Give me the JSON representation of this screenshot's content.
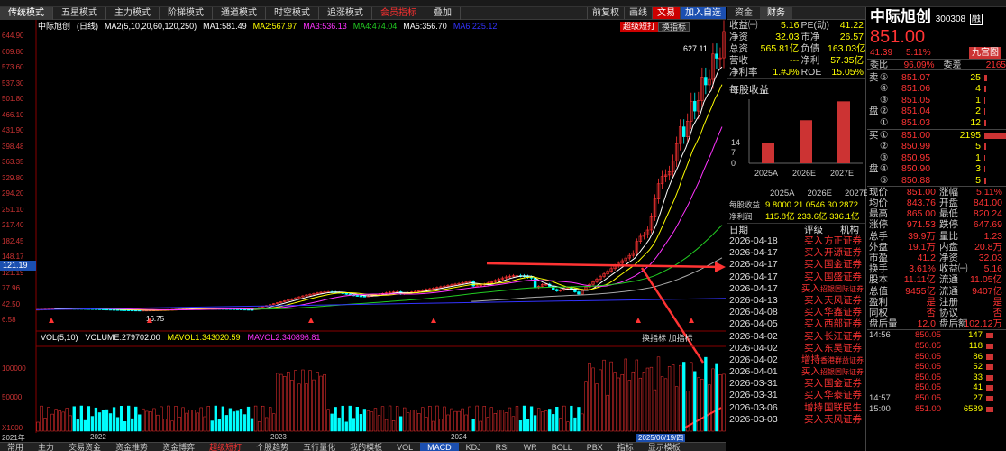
{
  "modes": [
    "传统模式",
    "五星模式",
    "主力模式",
    "阶梯模式",
    "通道模式",
    "时空模式",
    "追涨模式",
    "会员指标",
    "叠加"
  ],
  "mode_active": 0,
  "toolbar": {
    "prev_restore": "前复权",
    "zoom": "画线",
    "cmd": "文易",
    "add_watch": "加入自选"
  },
  "chart_header": {
    "name": "中际旭创",
    "period": "(日线)",
    "ma_setting": "MA2(5,10,20,60,120,250)",
    "ma1": "MA1:581.49",
    "ma2": "MA2:567.97",
    "ma3": "MA3:536.13",
    "ma4": "MA4:474.04",
    "ma5": "MA5:356.70",
    "ma6": "MA6:225.12"
  },
  "chart_buttons": {
    "super": "超级短打",
    "switch": "换指标"
  },
  "price_ticks": [
    "644.90",
    "609.80",
    "573.60",
    "537.30",
    "501.80",
    "466.10",
    "431.90",
    "398.48",
    "363.35",
    "329.80",
    "294.20",
    "251.10",
    "217.40",
    "182.45",
    "148.17",
    "121.19",
    "77.96",
    "42.50",
    "6.58"
  ],
  "current_price_label": "121.19",
  "peak_label": "627.11",
  "low_label": "16.75",
  "volume_header": {
    "label": "VOL(5,10)",
    "volume": "VOLUME:279702.00",
    "mavol1": "MAVOL1:343020.59",
    "mavol2": "MAVOL2:340896.81"
  },
  "volume_buttons": "换指标 加指标",
  "volume_ticks": [
    "100000",
    "50000",
    "X1000"
  ],
  "x_labels": [
    "2021年",
    "2022",
    "2023",
    "2024",
    "2025/06/19/四"
  ],
  "bottom_tabs": [
    "常用",
    "主力",
    "交易资金",
    "资金推势",
    "资金博弈",
    "超级短打",
    "个股趋势",
    "五行量化",
    "我的模板",
    "VOL",
    "MACD",
    "KDJ",
    "RSI",
    "WR",
    "BOLL",
    "PBX",
    "指标",
    "显示模板"
  ],
  "bottom_active": 10,
  "mid_tabs": [
    "资金",
    "财务"
  ],
  "mid_active": 1,
  "fundamentals": [
    {
      "k": "收益㈠",
      "v": "5.16",
      "k2": "PE(动)",
      "v2": "41.22"
    },
    {
      "k": "净资",
      "v": "32.03",
      "k2": "市净",
      "v2": "26.57"
    },
    {
      "k": "总资",
      "v": "565.81亿",
      "k2": "负债",
      "v2": "163.03亿"
    },
    {
      "k": "营收",
      "v": "---",
      "k2": "净利",
      "v2": "57.35亿"
    },
    {
      "k": "净利率",
      "v": "1.#J%",
      "k2": "ROE",
      "v2": "15.05%"
    }
  ],
  "eps_title": "每股收益",
  "chart_data": {
    "type": "bar",
    "title": "每股收益",
    "categories": [
      "2025A",
      "2026E",
      "2027E"
    ],
    "values": [
      9.8,
      21.0546,
      30.2872
    ],
    "ylim": [
      0,
      30
    ],
    "yticks": [
      "14",
      "7",
      "0"
    ],
    "net_profit": [
      "115.8亿",
      "233.6亿",
      "336.1亿"
    ]
  },
  "eps_rows": [
    {
      "k": "每股收益",
      "v": "9.8000 21.0546 30.2872"
    },
    {
      "k": "净利润",
      "v": "115.8亿 233.6亿 336.1亿"
    }
  ],
  "rating_header": {
    "date": "日期",
    "rating": "评级",
    "org": "机构"
  },
  "ratings": [
    {
      "d": "2026-04-18",
      "a": "买入",
      "o": "方正证券"
    },
    {
      "d": "2026-04-17",
      "a": "买入",
      "o": "开源证券"
    },
    {
      "d": "2026-04-17",
      "a": "买入",
      "o": "国金证券"
    },
    {
      "d": "2026-04-17",
      "a": "买入",
      "o": "国盛证券"
    },
    {
      "d": "2026-04-17",
      "a": "买入",
      "o": "招银国际证券"
    },
    {
      "d": "2026-04-13",
      "a": "买入",
      "o": "天风证券"
    },
    {
      "d": "2026-04-08",
      "a": "买入",
      "o": "华鑫证券"
    },
    {
      "d": "2026-04-05",
      "a": "买入",
      "o": "西部证券"
    },
    {
      "d": "2026-04-02",
      "a": "买入",
      "o": "长江证券"
    },
    {
      "d": "2026-04-02",
      "a": "买入",
      "o": "东吴证券"
    },
    {
      "d": "2026-04-02",
      "a": "增持",
      "o": "香港群益证券"
    },
    {
      "d": "2026-04-01",
      "a": "买入",
      "o": "招银国际证券"
    },
    {
      "d": "2026-03-31",
      "a": "买入",
      "o": "国金证券"
    },
    {
      "d": "2026-03-31",
      "a": "买入",
      "o": "华泰证券"
    },
    {
      "d": "2026-03-06",
      "a": "增持",
      "o": "国联民生"
    },
    {
      "d": "2026-03-03",
      "a": "买入",
      "o": "天风证券"
    }
  ],
  "stock": {
    "name": "中际旭创",
    "code": "300308",
    "tag": "融",
    "price": "851.00",
    "change": "41.39",
    "pct": "5.11%",
    "tag2": "九宫图"
  },
  "weibi": {
    "k": "委比",
    "v": "96.09%",
    "k2": "委差",
    "v2": "2165"
  },
  "asks": [
    {
      "lab": "⑤",
      "p": "851.07",
      "v": "25",
      "w": 3
    },
    {
      "lab": "④",
      "p": "851.06",
      "v": "4",
      "w": 2
    },
    {
      "lab": "③",
      "p": "851.05",
      "v": "1",
      "w": 1
    },
    {
      "lab": "②",
      "p": "851.04",
      "v": "2",
      "w": 1
    },
    {
      "lab": "①",
      "p": "851.03",
      "v": "12",
      "w": 2
    }
  ],
  "bids": [
    {
      "lab": "①",
      "p": "851.00",
      "v": "2195",
      "w": 40
    },
    {
      "lab": "②",
      "p": "850.99",
      "v": "5",
      "w": 2
    },
    {
      "lab": "③",
      "p": "850.95",
      "v": "1",
      "w": 1
    },
    {
      "lab": "④",
      "p": "850.90",
      "v": "3",
      "w": 1
    },
    {
      "lab": "⑤",
      "p": "850.88",
      "v": "5",
      "w": 2
    }
  ],
  "side_labels": {
    "sell": "卖",
    "buy": "买",
    "pan": "盘"
  },
  "stats": [
    {
      "k": "现价",
      "v": "851.00",
      "k2": "涨幅",
      "v2": "5.11%"
    },
    {
      "k": "均价",
      "v": "843.76",
      "k2": "开盘",
      "v2": "841.00"
    },
    {
      "k": "最高",
      "v": "865.00",
      "k2": "最低",
      "v2": "820.24"
    },
    {
      "k": "涨停",
      "v": "971.53",
      "k2": "跌停",
      "v2": "647.69"
    },
    {
      "k": "总手",
      "v": "39.9万",
      "k2": "量比",
      "v2": "1.23"
    },
    {
      "k": "外盘",
      "v": "19.1万",
      "k2": "内盘",
      "v2": "20.8万"
    },
    {
      "k": "市盈",
      "v": "41.2",
      "k2": "净资",
      "v2": "32.03"
    },
    {
      "k": "换手",
      "v": "3.61%",
      "k2": "收益㈠",
      "v2": "5.16"
    },
    {
      "k": "股本",
      "v": "11.11亿",
      "k2": "流通",
      "v2": "11.05亿"
    },
    {
      "k": "总值",
      "v": "9455亿",
      "k2": "流通",
      "v2": "9407亿"
    },
    {
      "k": "盈利",
      "v": "是",
      "k2": "注册",
      "v2": "是"
    },
    {
      "k": "同权",
      "v": "否",
      "k2": "协议",
      "v2": "否"
    },
    {
      "k": "盘后量",
      "v": "12.0",
      "k2": "盘后额",
      "v2": "102.12万"
    }
  ],
  "ticks": [
    {
      "t": "14:56",
      "p": "850.05",
      "v": "147",
      "c": "red"
    },
    {
      "t": "",
      "p": "850.05",
      "v": "118",
      "c": "red"
    },
    {
      "t": "",
      "p": "850.05",
      "v": "86",
      "c": "red"
    },
    {
      "t": "",
      "p": "850.05",
      "v": "52",
      "c": "red"
    },
    {
      "t": "",
      "p": "850.05",
      "v": "33",
      "c": "red"
    },
    {
      "t": "",
      "p": "850.05",
      "v": "41",
      "c": "red"
    },
    {
      "t": "14:57",
      "p": "850.05",
      "v": "27",
      "c": "red"
    },
    {
      "t": "15:00",
      "p": "851.00",
      "v": "6589",
      "c": "red"
    }
  ]
}
